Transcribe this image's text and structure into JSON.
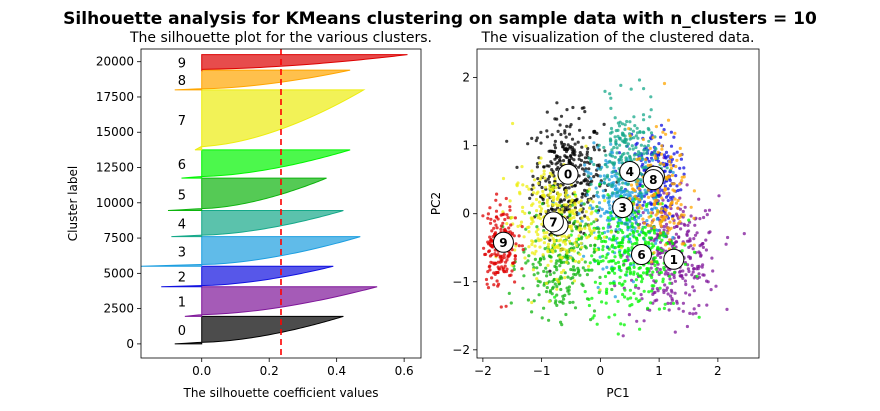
{
  "suptitle": "Silhouette analysis for KMeans clustering on sample data with n_clusters = 10",
  "chart_data": [
    {
      "type": "area",
      "title": "The silhouette plot for the various clusters.",
      "xlabel": "The silhouette coefficient values",
      "ylabel": "Cluster label",
      "xlim": [
        -0.18,
        0.65
      ],
      "ylim": [
        -1000,
        20900
      ],
      "xticks": [
        0.0,
        0.2,
        0.4,
        0.6
      ],
      "xtick_labels": [
        "0.0",
        "0.2",
        "0.4",
        "0.6"
      ],
      "yticks": [
        0,
        2500,
        5000,
        7500,
        10000,
        12500,
        15000,
        17500,
        20000
      ],
      "ytick_labels": [
        "0",
        "2500",
        "5000",
        "7500",
        "10000",
        "12500",
        "15000",
        "17500",
        "20000"
      ],
      "average_silhouette": 0.235,
      "average_line_color": "#ff0000",
      "clusters": [
        {
          "label": "0",
          "y_lower": 0,
          "y_upper": 1950,
          "min": -0.08,
          "max": 0.42,
          "color": "#000000"
        },
        {
          "label": "1",
          "y_lower": 1950,
          "y_upper": 4050,
          "min": -0.05,
          "max": 0.52,
          "color": "#7f1699"
        },
        {
          "label": "2",
          "y_lower": 4050,
          "y_upper": 5500,
          "min": -0.12,
          "max": 0.39,
          "color": "#1010e0"
        },
        {
          "label": "3",
          "y_lower": 5500,
          "y_upper": 7600,
          "min": -0.18,
          "max": 0.47,
          "color": "#1c9ee0"
        },
        {
          "label": "4",
          "y_lower": 7600,
          "y_upper": 9450,
          "min": -0.09,
          "max": 0.42,
          "color": "#15a889"
        },
        {
          "label": "5",
          "y_lower": 9450,
          "y_upper": 11750,
          "min": -0.1,
          "max": 0.37,
          "color": "#0db40d"
        },
        {
          "label": "6",
          "y_lower": 11750,
          "y_upper": 13750,
          "min": -0.06,
          "max": 0.44,
          "color": "#00f500"
        },
        {
          "label": "7",
          "y_lower": 13750,
          "y_upper": 18000,
          "min": -0.02,
          "max": 0.48,
          "color": "#eded10"
        },
        {
          "label": "8",
          "y_lower": 18000,
          "y_upper": 19400,
          "min": -0.08,
          "max": 0.44,
          "color": "#ffa500"
        },
        {
          "label": "9",
          "y_lower": 19400,
          "y_upper": 20500,
          "min": 0.0,
          "max": 0.61,
          "color": "#dd0000"
        }
      ]
    },
    {
      "type": "scatter",
      "title": "The visualization of the clustered data.",
      "xlabel": "PC1",
      "ylabel": "PC2",
      "xlim": [
        -2.1,
        2.7
      ],
      "ylim": [
        -2.12,
        2.42
      ],
      "xticks": [
        -2,
        -1,
        0,
        1,
        2
      ],
      "xtick_labels": [
        "−2",
        "−1",
        "0",
        "1",
        "2"
      ],
      "yticks": [
        -2,
        -1,
        0,
        1,
        2
      ],
      "ytick_labels": [
        "−2",
        "−1",
        "0",
        "1",
        "2"
      ],
      "clusters": [
        {
          "label": "0",
          "cx": -0.55,
          "cy": 0.58,
          "sx": 0.3,
          "sy": 0.42,
          "n": 320,
          "color": "#000000"
        },
        {
          "label": "1",
          "cx": 1.25,
          "cy": -0.65,
          "sx": 0.38,
          "sy": 0.45,
          "n": 320,
          "color": "#7f1699"
        },
        {
          "label": "2",
          "cx": 0.9,
          "cy": 0.55,
          "sx": 0.22,
          "sy": 0.32,
          "n": 220,
          "color": "#1010e0"
        },
        {
          "label": "3",
          "cx": 0.4,
          "cy": 0.1,
          "sx": 0.32,
          "sy": 0.42,
          "n": 300,
          "color": "#1c9ee0"
        },
        {
          "label": "4",
          "cx": 0.45,
          "cy": 0.8,
          "sx": 0.25,
          "sy": 0.4,
          "n": 220,
          "color": "#15a889"
        },
        {
          "label": "5",
          "cx": -0.7,
          "cy": -0.7,
          "sx": 0.32,
          "sy": 0.4,
          "n": 240,
          "color": "#0db40d"
        },
        {
          "label": "6",
          "cx": 0.55,
          "cy": -0.55,
          "sx": 0.4,
          "sy": 0.45,
          "n": 340,
          "color": "#00f500"
        },
        {
          "label": "7",
          "cx": -0.8,
          "cy": -0.1,
          "sx": 0.35,
          "sy": 0.4,
          "n": 300,
          "color": "#eded10"
        },
        {
          "label": "8",
          "cx": 1.0,
          "cy": 0.3,
          "sx": 0.25,
          "sy": 0.45,
          "n": 160,
          "color": "#ffa500"
        },
        {
          "label": "9",
          "cx": -1.7,
          "cy": -0.45,
          "sx": 0.15,
          "sy": 0.3,
          "n": 180,
          "color": "#dd0000"
        }
      ],
      "centers": [
        {
          "label": "0",
          "x": -0.55,
          "y": 0.58
        },
        {
          "label": "1",
          "x": 1.25,
          "y": -0.67
        },
        {
          "label": "2",
          "x": 0.92,
          "y": 0.55
        },
        {
          "label": "3",
          "x": 0.38,
          "y": 0.09
        },
        {
          "label": "4",
          "x": 0.5,
          "y": 0.62
        },
        {
          "label": "5",
          "x": -0.72,
          "y": -0.17
        },
        {
          "label": "6",
          "x": 0.7,
          "y": -0.6
        },
        {
          "label": "7",
          "x": -0.8,
          "y": -0.12
        },
        {
          "label": "8",
          "x": 0.9,
          "y": 0.5
        },
        {
          "label": "9",
          "x": -1.65,
          "y": -0.42
        }
      ]
    }
  ]
}
